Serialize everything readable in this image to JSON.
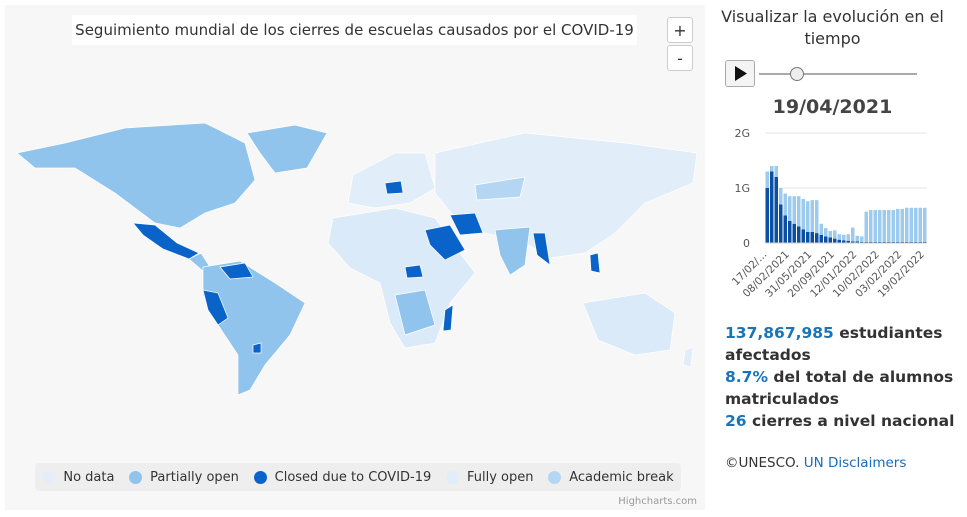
{
  "map": {
    "title": "Seguimiento mundial de los cierres de escuelas causados por el COVID-19",
    "zoom_in": "+",
    "zoom_out": "-",
    "legend": [
      {
        "label": "No data",
        "color": "#e4eef8"
      },
      {
        "label": "Partially open",
        "color": "#90c4ec"
      },
      {
        "label": "Closed due to COVID-19",
        "color": "#0a63c8"
      },
      {
        "label": "Fully open",
        "color": "#e1edf8"
      },
      {
        "label": "Academic break",
        "color": "#b5d6f2"
      }
    ],
    "credit": "Highcharts.com"
  },
  "side": {
    "title": "Visualizar la evolución en el tiempo",
    "date": "19/04/2021",
    "stats": [
      {
        "value": "137,867,985",
        "text": "estudiantes afectados"
      },
      {
        "value": "8.7%",
        "text": "del total de alumnos matriculados"
      },
      {
        "value": "26",
        "text": "cierres a nivel nacional"
      }
    ],
    "copyright": "©UNESCO.",
    "link": "UN Disclaimers"
  },
  "chart_data": {
    "type": "bar",
    "stacked": true,
    "categories": [
      "17/02/...",
      null,
      null,
      null,
      null,
      "08/02/2021",
      null,
      null,
      null,
      null,
      "31/05/2021",
      null,
      null,
      null,
      null,
      "20/09/2021",
      null,
      null,
      null,
      null,
      "12/01/2022",
      null,
      null,
      null,
      null,
      "10/02/2022",
      null,
      null,
      null,
      null,
      "03/02/2022",
      null,
      null,
      null,
      null,
      "19/02/2022"
    ],
    "series": [
      {
        "color": "#0a4fa3",
        "values": [
          1000000000,
          1300000000,
          1200000000,
          700000000,
          500000000,
          400000000,
          350000000,
          300000000,
          250000000,
          200000000,
          200000000,
          180000000,
          150000000,
          120000000,
          100000000,
          80000000,
          60000000,
          50000000,
          40000000,
          30000000,
          30000000,
          20000000,
          20000000,
          20000000,
          20000000,
          20000000,
          20000000,
          20000000,
          20000000,
          20000000,
          20000000,
          20000000,
          20000000,
          20000000,
          20000000,
          20000000
        ]
      },
      {
        "color": "#9ccbee",
        "values": [
          300000000,
          100000000,
          200000000,
          300000000,
          400000000,
          450000000,
          500000000,
          550000000,
          550000000,
          560000000,
          580000000,
          600000000,
          200000000,
          150000000,
          120000000,
          150000000,
          100000000,
          100000000,
          120000000,
          250000000,
          100000000,
          100000000,
          550000000,
          580000000,
          580000000,
          580000000,
          580000000,
          580000000,
          580000000,
          600000000,
          600000000,
          620000000,
          620000000,
          620000000,
          620000000,
          620000000
        ]
      }
    ],
    "ylim": [
      0,
      2000000000
    ],
    "yticks": [
      0,
      {
        "value": 1000000000,
        "label": "1G"
      },
      {
        "value": 2000000000,
        "label": "2G"
      }
    ],
    "grid": true
  }
}
